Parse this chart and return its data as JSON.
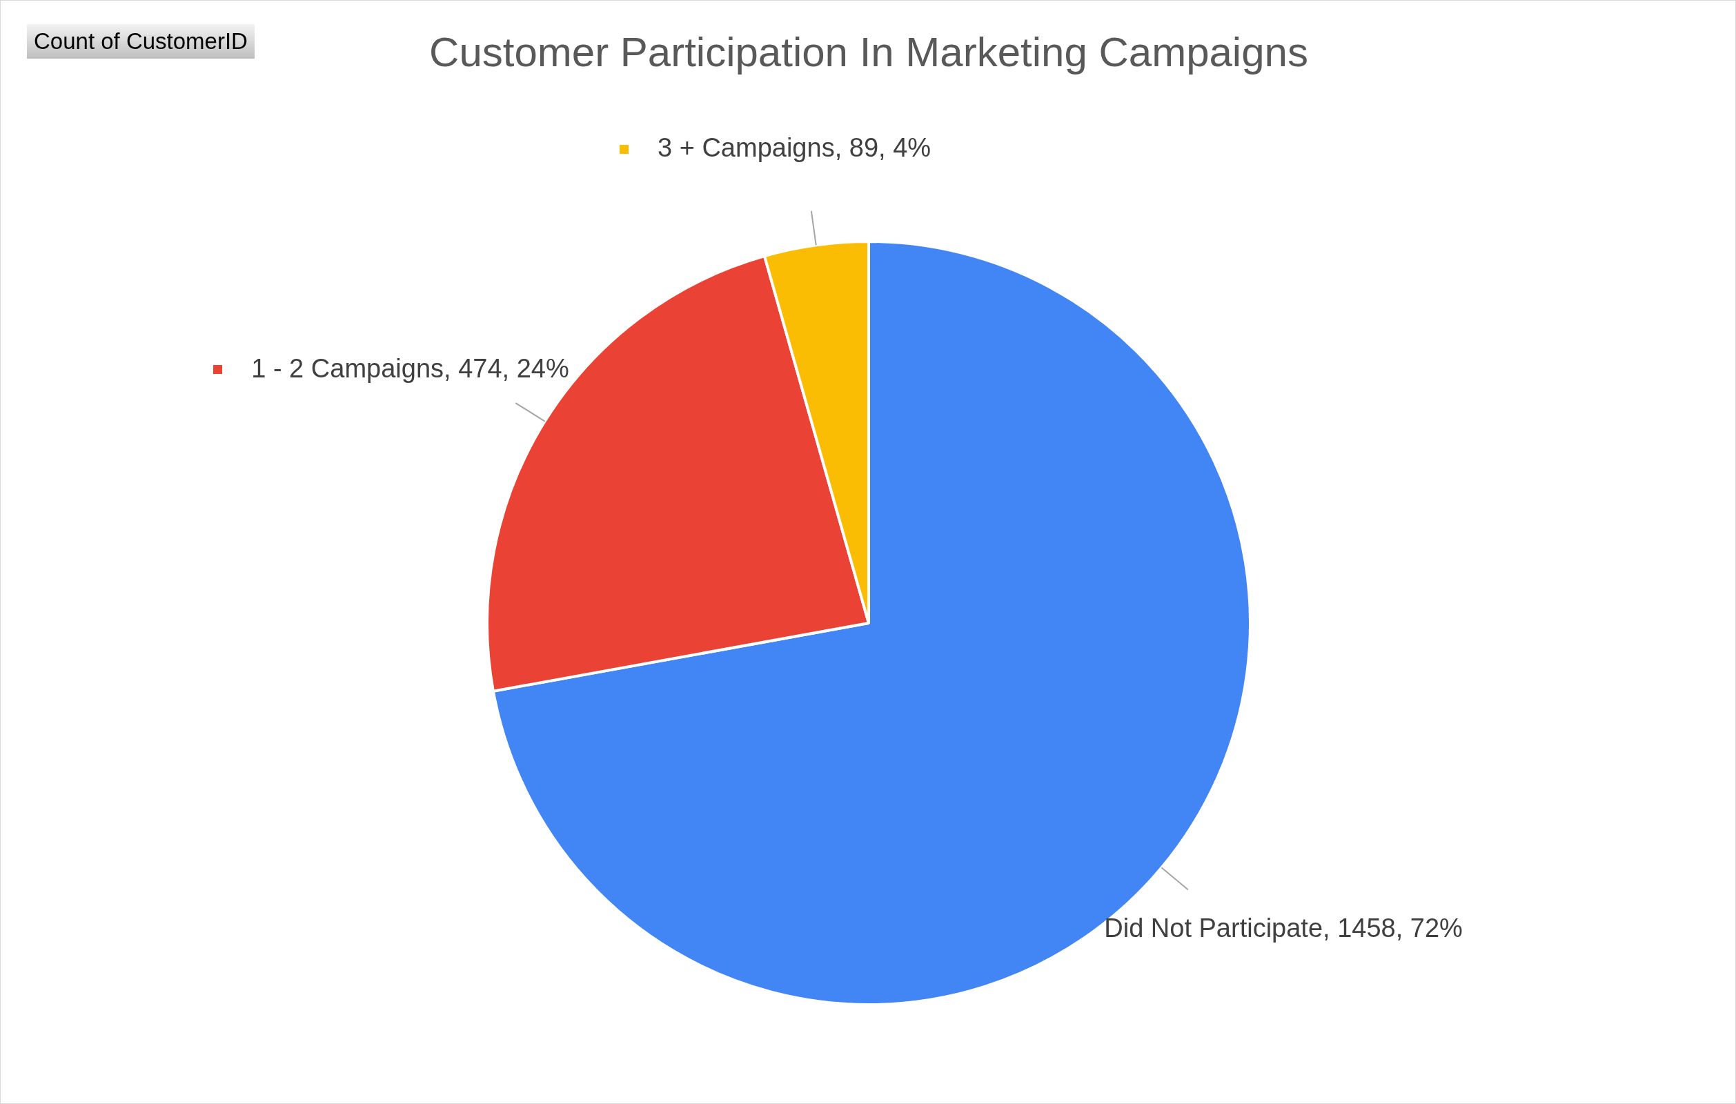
{
  "chart_data": {
    "type": "pie",
    "title": "Customer Participation In Marketing Campaigns",
    "categories": [
      "Did Not Participate",
      "1 - 2 Campaigns",
      "3 + Campaigns"
    ],
    "values": [
      1458,
      474,
      89
    ],
    "colors": [
      "#4285f4",
      "#ea4335",
      "#fbbc04"
    ],
    "value_labels": [
      "1458, 72%",
      "474, 24%",
      "89, 4%"
    ],
    "annotations": [
      "Count of CustomerID"
    ],
    "legend": true
  }
}
